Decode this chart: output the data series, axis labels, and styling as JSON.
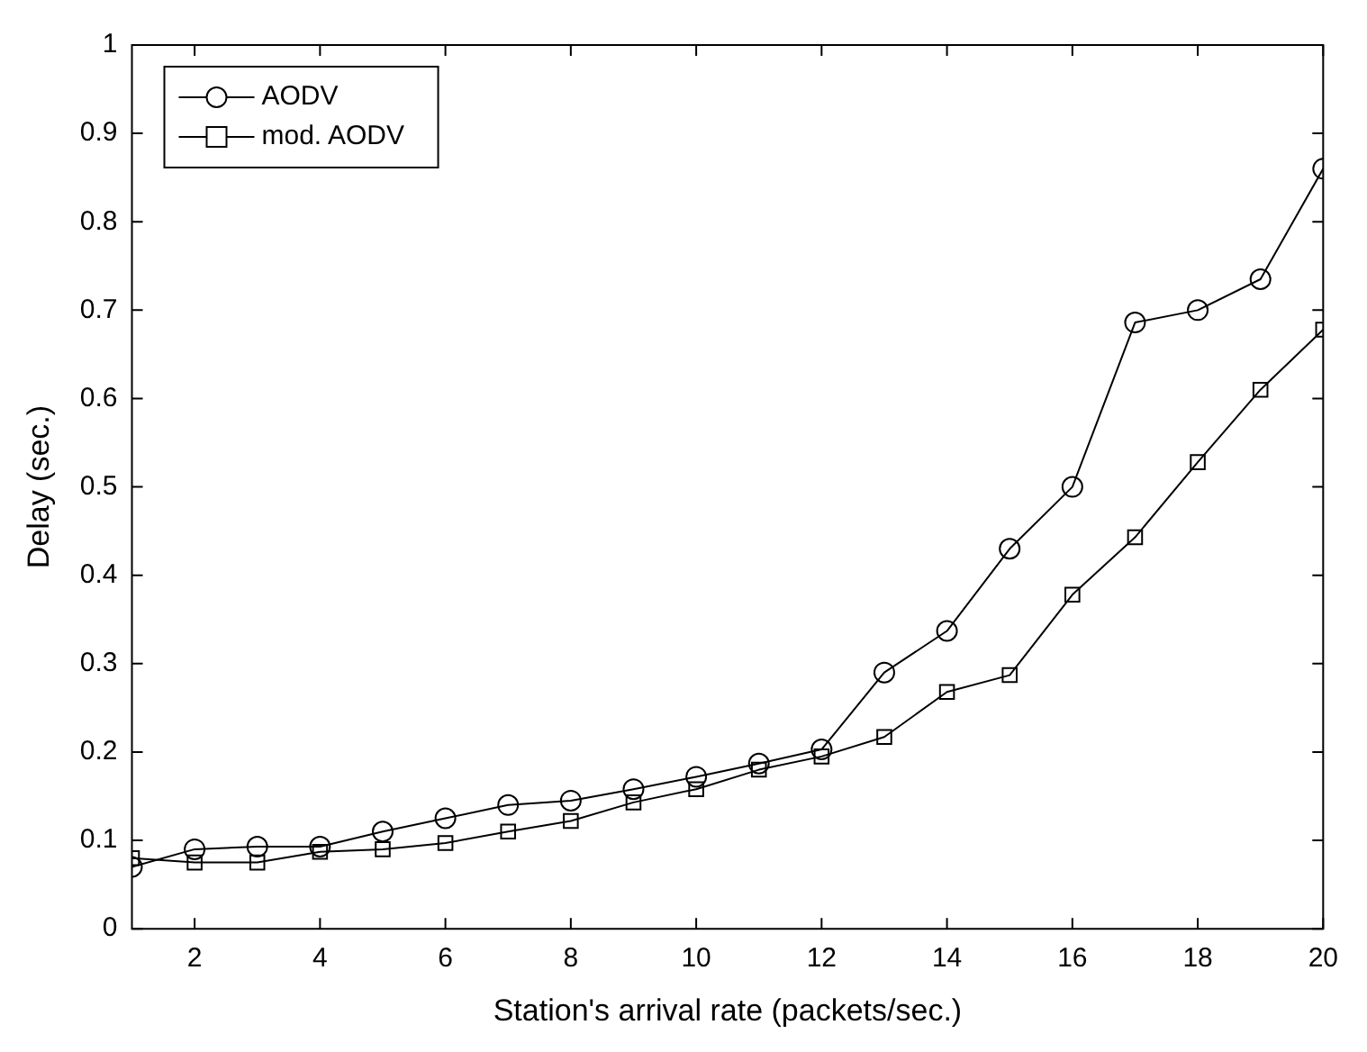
{
  "chart_data": {
    "type": "line",
    "xlabel": "Station's arrival rate (packets/sec.)",
    "ylabel": "Delay (sec.)",
    "x": [
      1,
      2,
      3,
      4,
      5,
      6,
      7,
      8,
      9,
      10,
      11,
      12,
      13,
      14,
      15,
      16,
      17,
      18,
      19,
      20
    ],
    "xlim": [
      1,
      20
    ],
    "xticks": [
      2,
      4,
      6,
      8,
      10,
      12,
      14,
      16,
      18,
      20
    ],
    "ylim": [
      0,
      1
    ],
    "yticks": [
      0,
      0.1,
      0.2,
      0.3,
      0.4,
      0.5,
      0.6,
      0.7,
      0.8,
      0.9,
      1
    ],
    "grid": false,
    "legend": "top left",
    "line_style": "solid",
    "series": [
      {
        "name": "AODV",
        "color": "#000000",
        "marker": "circle",
        "values": [
          0.07,
          0.09,
          0.093,
          0.093,
          0.11,
          0.125,
          0.14,
          0.145,
          0.158,
          0.172,
          0.187,
          0.203,
          0.29,
          0.337,
          0.43,
          0.5,
          0.686,
          0.7,
          0.735,
          0.86
        ]
      },
      {
        "name": "mod. AODV",
        "color": "#000000",
        "marker": "square",
        "values": [
          0.08,
          0.075,
          0.075,
          0.087,
          0.09,
          0.097,
          0.11,
          0.122,
          0.143,
          0.158,
          0.18,
          0.195,
          0.217,
          0.268,
          0.287,
          0.378,
          0.443,
          0.528,
          0.61,
          0.678
        ]
      }
    ]
  }
}
